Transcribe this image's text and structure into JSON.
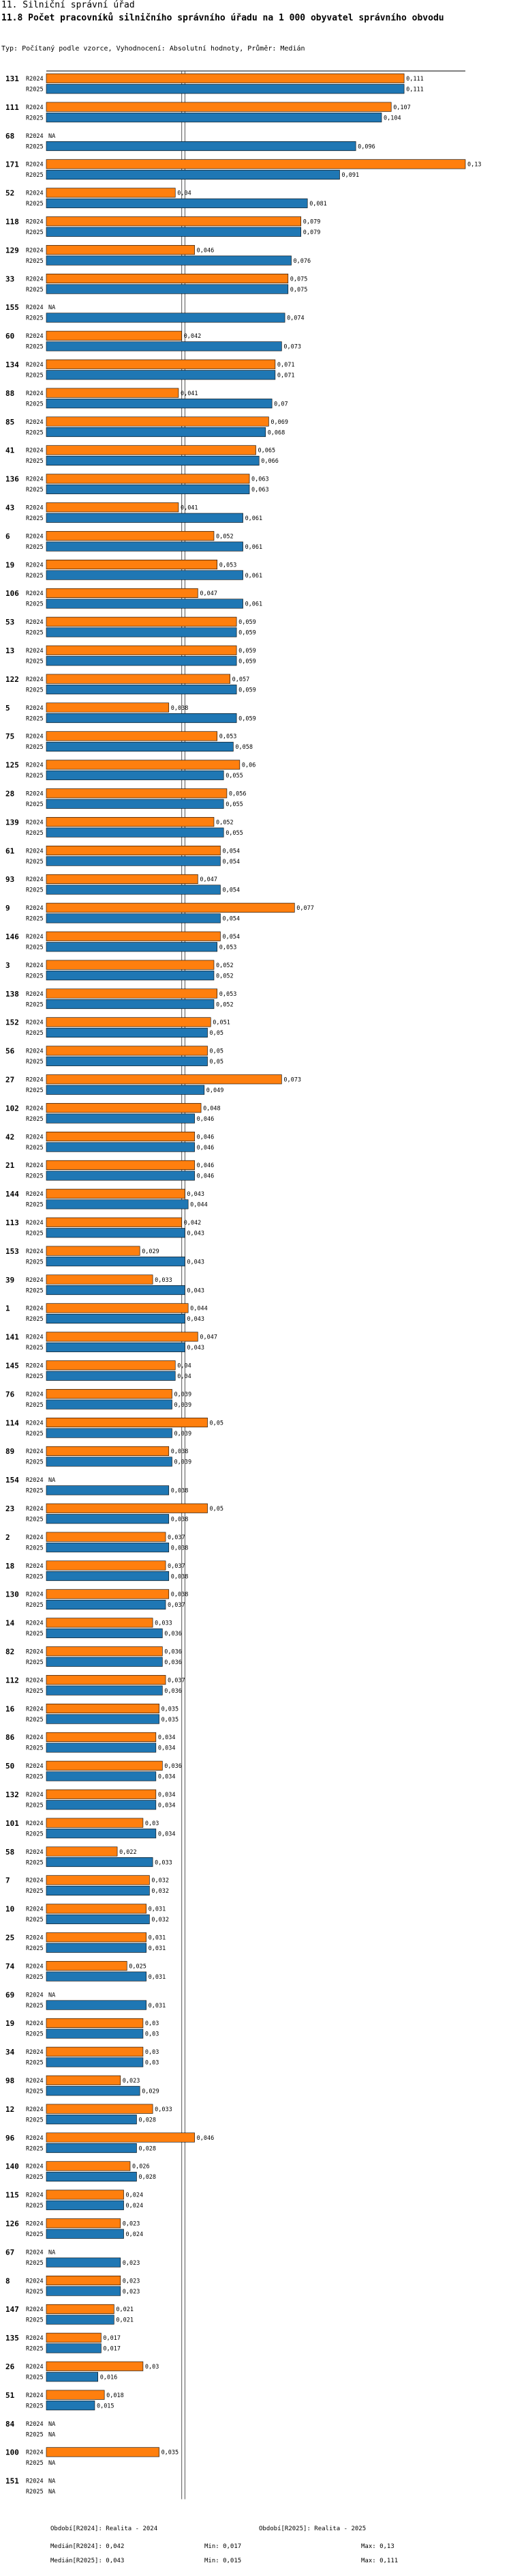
{
  "header": {
    "section": "11. Silniční správní úřad",
    "title": "11.8 Počet pracovníků silničního správního úřadu na 1 000 obyvatel správního obvodu",
    "subtitle": "Typ: Počítaný podle vzorce, Vyhodnocení: Absolutní hodnoty, Průměr: Medián"
  },
  "colors": {
    "r2024": "#ff7f0e",
    "r2025": "#1f77b4",
    "border": "#000000"
  },
  "chart_data": {
    "type": "bar",
    "orientation": "horizontal",
    "series": [
      {
        "name": "R2024",
        "color": "#ff7f0e"
      },
      {
        "name": "R2025",
        "color": "#1f77b4"
      }
    ],
    "xlim": [
      0,
      0.13
    ],
    "reference_lines": {
      "median_2024": 0.042,
      "median_2025": 0.043
    },
    "missing_label": "NA",
    "rows": [
      {
        "id": "131",
        "r2024": 0.111,
        "r2025": 0.111
      },
      {
        "id": "111",
        "r2024": 0.107,
        "r2025": 0.104
      },
      {
        "id": "68",
        "r2024": null,
        "r2025": 0.096
      },
      {
        "id": "171",
        "r2024": 0.13,
        "r2025": 0.091
      },
      {
        "id": "52",
        "r2024": 0.04,
        "r2025": 0.081
      },
      {
        "id": "118",
        "r2024": 0.079,
        "r2025": 0.079
      },
      {
        "id": "129",
        "r2024": 0.046,
        "r2025": 0.076
      },
      {
        "id": "33",
        "r2024": 0.075,
        "r2025": 0.075
      },
      {
        "id": "155",
        "r2024": null,
        "r2025": 0.074
      },
      {
        "id": "60",
        "r2024": 0.042,
        "r2025": 0.073
      },
      {
        "id": "134",
        "r2024": 0.071,
        "r2025": 0.071
      },
      {
        "id": "88",
        "r2024": 0.041,
        "r2025": 0.07
      },
      {
        "id": "85",
        "r2024": 0.069,
        "r2025": 0.068
      },
      {
        "id": "41",
        "r2024": 0.065,
        "r2025": 0.066
      },
      {
        "id": "136",
        "r2024": 0.063,
        "r2025": 0.063
      },
      {
        "id": "43",
        "r2024": 0.041,
        "r2025": 0.061
      },
      {
        "id": "6",
        "r2024": 0.052,
        "r2025": 0.061
      },
      {
        "id": "19",
        "r2024": 0.053,
        "r2025": 0.061
      },
      {
        "id": "106",
        "r2024": 0.047,
        "r2025": 0.061
      },
      {
        "id": "53",
        "r2024": 0.059,
        "r2025": 0.059
      },
      {
        "id": "13",
        "r2024": 0.059,
        "r2025": 0.059
      },
      {
        "id": "122",
        "r2024": 0.057,
        "r2025": 0.059
      },
      {
        "id": "5",
        "r2024": 0.038,
        "r2025": 0.059
      },
      {
        "id": "75",
        "r2024": 0.053,
        "r2025": 0.058
      },
      {
        "id": "125",
        "r2024": 0.06,
        "r2025": 0.055
      },
      {
        "id": "28",
        "r2024": 0.056,
        "r2025": 0.055
      },
      {
        "id": "139",
        "r2024": 0.052,
        "r2025": 0.055
      },
      {
        "id": "61",
        "r2024": 0.054,
        "r2025": 0.054
      },
      {
        "id": "93",
        "r2024": 0.047,
        "r2025": 0.054
      },
      {
        "id": "9",
        "r2024": 0.077,
        "r2025": 0.054
      },
      {
        "id": "146",
        "r2024": 0.054,
        "r2025": 0.053
      },
      {
        "id": "3",
        "r2024": 0.052,
        "r2025": 0.052
      },
      {
        "id": "138",
        "r2024": 0.053,
        "r2025": 0.052
      },
      {
        "id": "152",
        "r2024": 0.051,
        "r2025": 0.05
      },
      {
        "id": "56",
        "r2024": 0.05,
        "r2025": 0.05
      },
      {
        "id": "27",
        "r2024": 0.073,
        "r2025": 0.049
      },
      {
        "id": "102",
        "r2024": 0.048,
        "r2025": 0.046
      },
      {
        "id": "42",
        "r2024": 0.046,
        "r2025": 0.046
      },
      {
        "id": "21",
        "r2024": 0.046,
        "r2025": 0.046
      },
      {
        "id": "144",
        "r2024": 0.043,
        "r2025": 0.044
      },
      {
        "id": "113",
        "r2024": 0.042,
        "r2025": 0.043
      },
      {
        "id": "153",
        "r2024": 0.029,
        "r2025": 0.043
      },
      {
        "id": "39",
        "r2024": 0.033,
        "r2025": 0.043
      },
      {
        "id": "1",
        "r2024": 0.044,
        "r2025": 0.043
      },
      {
        "id": "141",
        "r2024": 0.047,
        "r2025": 0.043
      },
      {
        "id": "145",
        "r2024": 0.04,
        "r2025": 0.04
      },
      {
        "id": "76",
        "r2024": 0.039,
        "r2025": 0.039
      },
      {
        "id": "114",
        "r2024": 0.05,
        "r2025": 0.039
      },
      {
        "id": "89",
        "r2024": 0.038,
        "r2025": 0.039
      },
      {
        "id": "154",
        "r2024": null,
        "r2025": 0.038
      },
      {
        "id": "23",
        "r2024": 0.05,
        "r2025": 0.038
      },
      {
        "id": "2",
        "r2024": 0.037,
        "r2025": 0.038
      },
      {
        "id": "18",
        "r2024": 0.037,
        "r2025": 0.038
      },
      {
        "id": "130",
        "r2024": 0.038,
        "r2025": 0.037
      },
      {
        "id": "14",
        "r2024": 0.033,
        "r2025": 0.036
      },
      {
        "id": "82",
        "r2024": 0.036,
        "r2025": 0.036
      },
      {
        "id": "112",
        "r2024": 0.037,
        "r2025": 0.036
      },
      {
        "id": "16",
        "r2024": 0.035,
        "r2025": 0.035
      },
      {
        "id": "86",
        "r2024": 0.034,
        "r2025": 0.034
      },
      {
        "id": "50",
        "r2024": 0.036,
        "r2025": 0.034
      },
      {
        "id": "132",
        "r2024": 0.034,
        "r2025": 0.034
      },
      {
        "id": "101",
        "r2024": 0.03,
        "r2025": 0.034
      },
      {
        "id": "58",
        "r2024": 0.022,
        "r2025": 0.033
      },
      {
        "id": "7",
        "r2024": 0.032,
        "r2025": 0.032
      },
      {
        "id": "10",
        "r2024": 0.031,
        "r2025": 0.032
      },
      {
        "id": "25",
        "r2024": 0.031,
        "r2025": 0.031
      },
      {
        "id": "74",
        "r2024": 0.025,
        "r2025": 0.031
      },
      {
        "id": "69",
        "r2024": null,
        "r2025": 0.031
      },
      {
        "id": "19",
        "r2024": 0.03,
        "r2025": 0.03
      },
      {
        "id": "34",
        "r2024": 0.03,
        "r2025": 0.03
      },
      {
        "id": "98",
        "r2024": 0.023,
        "r2025": 0.029
      },
      {
        "id": "12",
        "r2024": 0.033,
        "r2025": 0.028
      },
      {
        "id": "96",
        "r2024": 0.046,
        "r2025": 0.028
      },
      {
        "id": "140",
        "r2024": 0.026,
        "r2025": 0.028
      },
      {
        "id": "115",
        "r2024": 0.024,
        "r2025": 0.024
      },
      {
        "id": "126",
        "r2024": 0.023,
        "r2025": 0.024
      },
      {
        "id": "67",
        "r2024": null,
        "r2025": 0.023
      },
      {
        "id": "8",
        "r2024": 0.023,
        "r2025": 0.023
      },
      {
        "id": "147",
        "r2024": 0.021,
        "r2025": 0.021
      },
      {
        "id": "135",
        "r2024": 0.017,
        "r2025": 0.017
      },
      {
        "id": "26",
        "r2024": 0.03,
        "r2025": 0.016
      },
      {
        "id": "51",
        "r2024": 0.018,
        "r2025": 0.015
      },
      {
        "id": "84",
        "r2024": null,
        "r2025": null
      },
      {
        "id": "100",
        "r2024": 0.035,
        "r2025": null
      },
      {
        "id": "151",
        "r2024": null,
        "r2025": null
      }
    ]
  },
  "footer": {
    "legend_2024": "Období[R2024]: Realita - 2024",
    "legend_2025": "Období[R2025]: Realita - 2025",
    "median_2024": "Medián[R2024]: 0,042",
    "median_2025": "Medián[R2025]: 0,043",
    "min_2024": "Min: 0,017",
    "min_2025": "Min: 0,015",
    "max_2024": "Max: 0,13",
    "max_2025": "Max: 0,111"
  }
}
